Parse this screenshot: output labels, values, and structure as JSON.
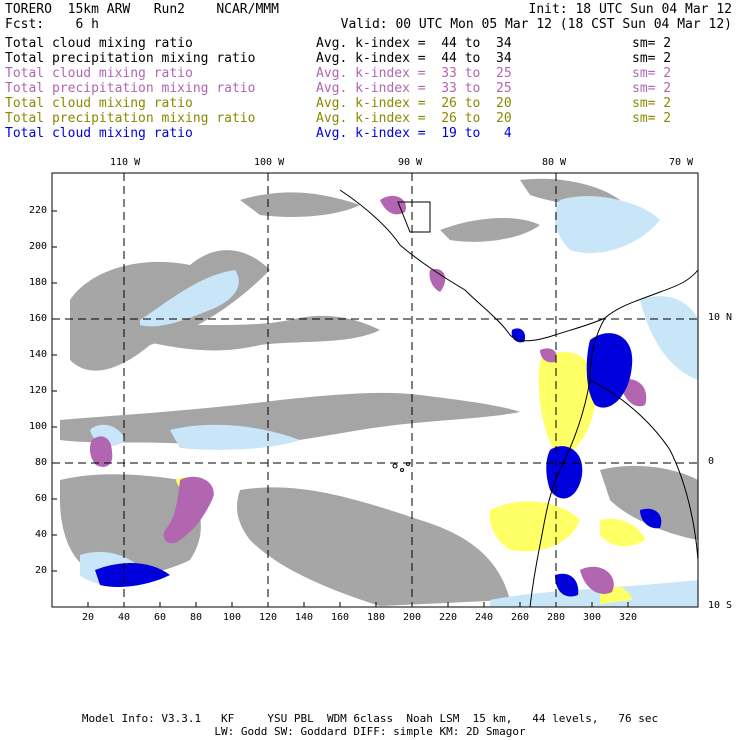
{
  "header": {
    "model": "TORERO  15km ARW   Run2    NCAR/MMM",
    "init": "Init: 18 UTC Sun 04 Mar 12",
    "fcst": "Fcst:    6 h",
    "valid": "Valid: 00 UTC Mon 05 Mar 12 (18 CST Sun 04 Mar 12)"
  },
  "legend": [
    {
      "name": "Total cloud mixing ratio",
      "kidx": "Avg. k-index =  44 to  34",
      "sm": "sm= 2",
      "color": "#000000"
    },
    {
      "name": "Total precipitation mixing ratio",
      "kidx": "Avg. k-index =  44 to  34",
      "sm": "sm= 2",
      "color": "#000000"
    },
    {
      "name": "Total cloud mixing ratio",
      "kidx": "Avg. k-index =  33 to  25",
      "sm": "sm= 2",
      "color": "#b266b2"
    },
    {
      "name": "Total precipitation mixing ratio",
      "kidx": "Avg. k-index =  33 to  25",
      "sm": "sm= 2",
      "color": "#b266b2"
    },
    {
      "name": "Total cloud mixing ratio",
      "kidx": "Avg. k-index =  26 to  20",
      "sm": "sm= 2",
      "color": "#8a8a00"
    },
    {
      "name": "Total precipitation mixing ratio",
      "kidx": "Avg. k-index =  26 to  20",
      "sm": "sm= 2",
      "color": "#8a8a00"
    },
    {
      "name": "Total cloud mixing ratio",
      "kidx": "Avg. k-index =  19 to   4",
      "sm": "",
      "color": "#0000dd"
    }
  ],
  "axes": {
    "x_ticks": [
      "20",
      "40",
      "60",
      "80",
      "100",
      "120",
      "140",
      "160",
      "180",
      "200",
      "220",
      "240",
      "260",
      "280",
      "300",
      "320"
    ],
    "y_ticks": [
      "20",
      "40",
      "60",
      "80",
      "100",
      "120",
      "140",
      "160",
      "180",
      "200",
      "220"
    ],
    "lon_labels": [
      "110 W",
      "100 W",
      "90 W",
      "80 W",
      "70 W"
    ],
    "lat_labels": [
      "10 N",
      "0",
      "10 S"
    ]
  },
  "colors": {
    "gray": "#9c9c9c",
    "purple": "#b266b2",
    "yellow": "#ffff66",
    "blue": "#0000dd",
    "lightblue": "#c8e6f8"
  },
  "footer": {
    "line1": "Model Info: V3.3.1   KF     YSU PBL  WDM 6class  Noah LSM  15 km,   44 levels,   76 sec",
    "line2": "LW: Godd SW: Goddard DIFF: simple KM: 2D Smagor"
  }
}
